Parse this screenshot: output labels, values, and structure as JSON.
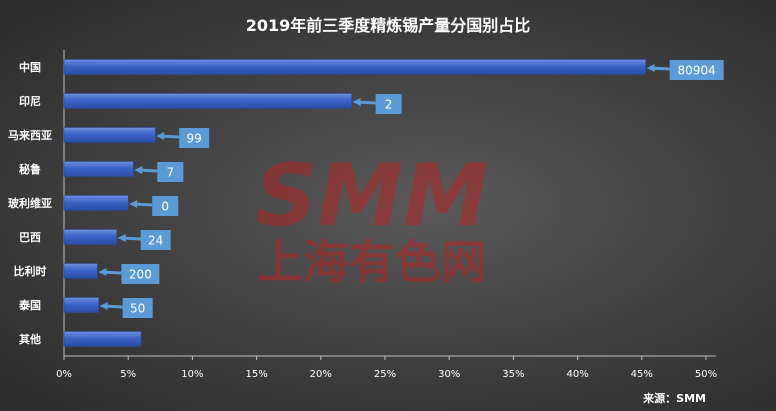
{
  "chart_data": {
    "type": "bar",
    "orientation": "horizontal",
    "title": "2019年前三季度精炼锡产量分国别占比",
    "categories": [
      "中国",
      "印尼",
      "马来西亚",
      "秘鲁",
      "玻利维亚",
      "巴西",
      "比利时",
      "泰国",
      "其他"
    ],
    "values": [
      45.3,
      22.4,
      7.1,
      5.4,
      5.0,
      4.1,
      2.6,
      2.7,
      6.0
    ],
    "data_labels": [
      "80904",
      "2",
      "99",
      "7",
      "0",
      "24",
      "200",
      "50",
      ""
    ],
    "xlim": [
      0,
      50
    ],
    "x_ticks": [
      "0%",
      "5%",
      "10%",
      "15%",
      "20%",
      "25%",
      "30%",
      "35%",
      "40%",
      "45%",
      "50%"
    ],
    "bar_color": "#3a64c8",
    "label_box_color": "#5b9bd5",
    "grid": false,
    "legend": "none"
  },
  "watermark": {
    "line1": "SMM",
    "line2": "上海有色网",
    "color": "#c62828"
  },
  "source": "来源：SMM"
}
